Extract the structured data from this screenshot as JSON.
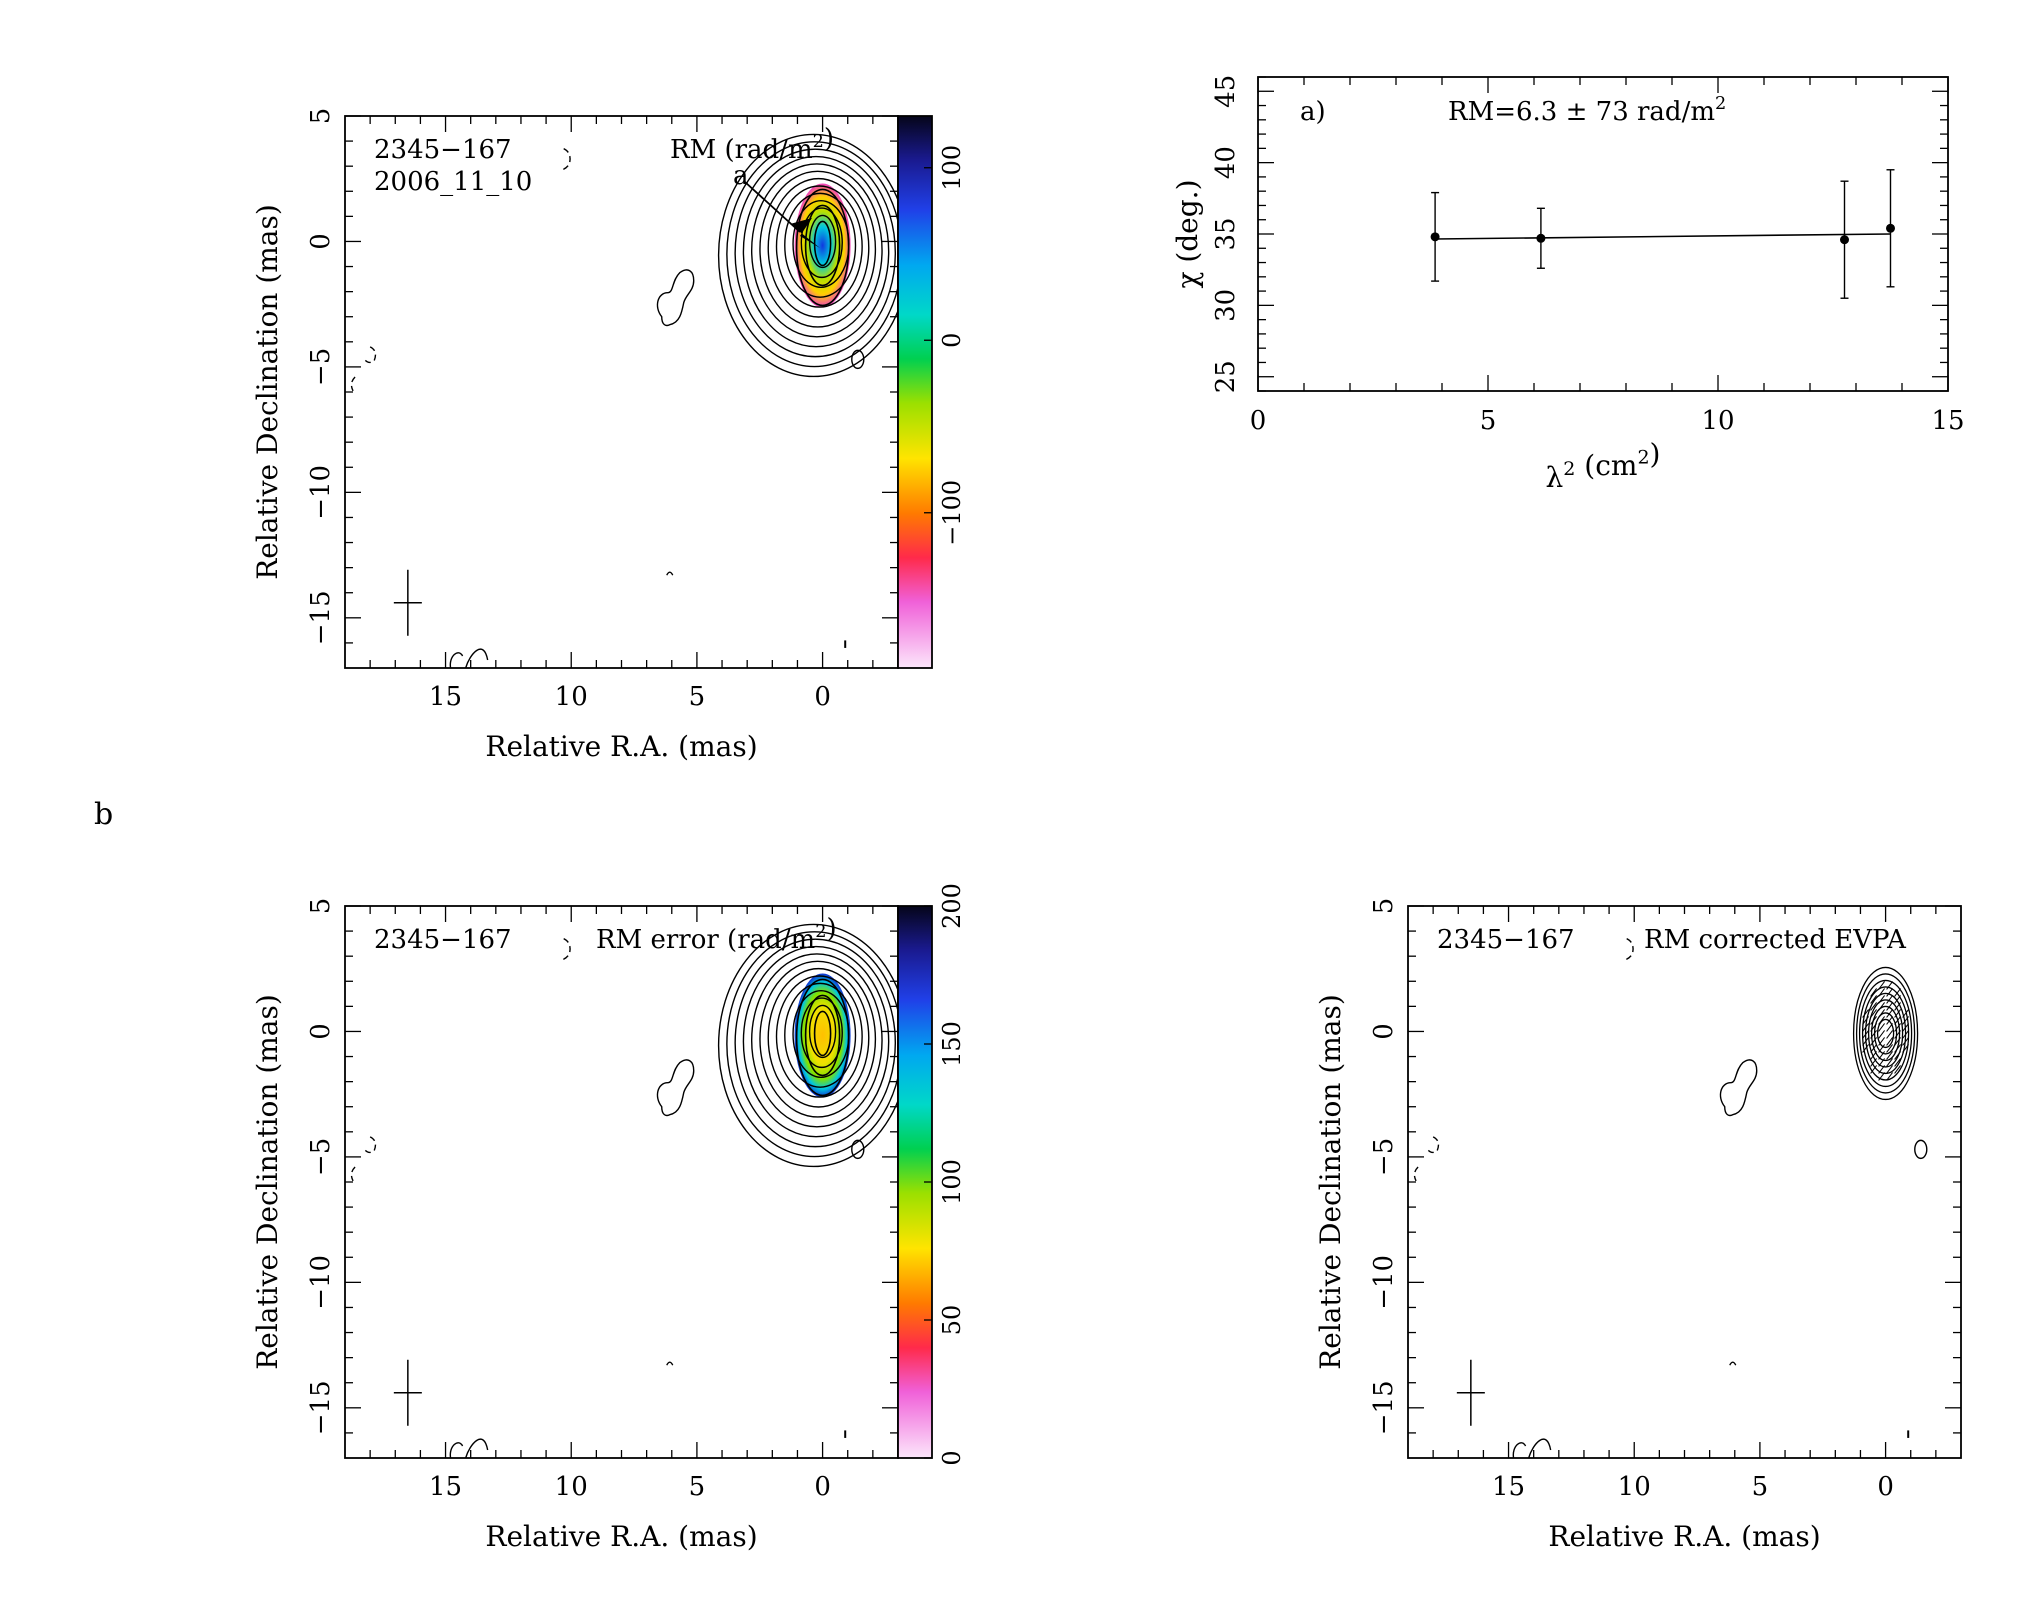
{
  "figure_label": "b",
  "chart_data": [
    {
      "id": "rm_map",
      "type": "heatmap",
      "source": "2345−167",
      "epoch": "2006_11_10",
      "map_label": "RM (rad/m",
      "map_label_sup": "2",
      "map_label_close": ")",
      "marker_label": "a",
      "xlabel": "Relative R.A. (mas)",
      "ylabel": "Relative Declination (mas)",
      "xlim": [
        19,
        -3
      ],
      "ylim": [
        -17,
        5
      ],
      "xticks": [
        "15",
        "10",
        "5",
        "0"
      ],
      "yticks": [
        "5",
        "0",
        "−5",
        "−10",
        "−15"
      ],
      "colorbar": {
        "range": [
          -190,
          130
        ],
        "ticks": [
          "100",
          "0",
          "−100"
        ]
      }
    },
    {
      "id": "rm_fit",
      "type": "scatter",
      "panel_label": "a)",
      "annotation": "RM=6.3 ± 73 rad/m",
      "annotation_sup": "2",
      "xlabel": "λ",
      "xlabel_sup": "2",
      "xlabel_rest": " (cm",
      "xlabel_sup2": "2",
      "xlabel_close": ")",
      "ylabel": "χ (deg.)",
      "xlim": [
        0,
        15
      ],
      "ylim": [
        24,
        46
      ],
      "xticks": [
        "0",
        "5",
        "10",
        "15"
      ],
      "yticks": [
        "25",
        "30",
        "35",
        "40",
        "45"
      ],
      "points": [
        {
          "x": 3.85,
          "y": 34.8,
          "err": 3.1
        },
        {
          "x": 6.15,
          "y": 34.7,
          "err": 2.1
        },
        {
          "x": 12.75,
          "y": 34.6,
          "err": 4.1
        },
        {
          "x": 13.75,
          "y": 35.4,
          "err": 4.1
        }
      ],
      "fit": {
        "x": [
          3.85,
          13.75
        ],
        "y": [
          34.65,
          35.0
        ]
      }
    },
    {
      "id": "rm_error_map",
      "type": "heatmap",
      "source": "2345−167",
      "map_label": "RM error (rad/m",
      "map_label_sup": "2",
      "map_label_close": ")",
      "xlabel": "Relative R.A. (mas)",
      "ylabel": "Relative Declination (mas)",
      "xlim": [
        19,
        -3
      ],
      "ylim": [
        -17,
        5
      ],
      "xticks": [
        "15",
        "10",
        "5",
        "0"
      ],
      "yticks": [
        "5",
        "0",
        "−5",
        "−10",
        "−15"
      ],
      "colorbar": {
        "range": [
          0,
          200
        ],
        "ticks": [
          "200",
          "150",
          "100",
          "50",
          "0"
        ]
      }
    },
    {
      "id": "evpa_map",
      "type": "heatmap",
      "source": "2345−167",
      "map_label": "RM corrected EVPA",
      "xlabel": "Relative R.A. (mas)",
      "ylabel": "Relative Declination (mas)",
      "xlim": [
        19,
        -3
      ],
      "ylim": [
        -17,
        5
      ],
      "xticks": [
        "15",
        "10",
        "5",
        "0"
      ],
      "yticks": [
        "5",
        "0",
        "−5",
        "−10",
        "−15"
      ]
    }
  ]
}
